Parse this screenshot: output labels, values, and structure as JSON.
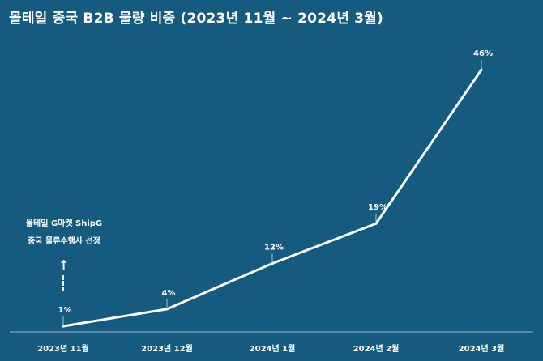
{
  "title": "몰테일 중국 B2B 물량 비중 (2023년 11월 ~ 2024년 3월)",
  "annotation": {
    "line1": "몰테일 G마켓 ShipG",
    "line2": "중국 물류수행사 선정",
    "arrow_icon": "arrow-up-dashed"
  },
  "colors": {
    "background": "#155b80",
    "line": "#ffffff",
    "text": "#ffffff"
  },
  "chart_data": {
    "type": "line",
    "categories": [
      "2023년 11월",
      "2023년 12월",
      "2024년 1월",
      "2024년 2월",
      "2024년 3월"
    ],
    "values": [
      1,
      4,
      12,
      19,
      46
    ],
    "data_labels": [
      "1%",
      "4%",
      "12%",
      "19%",
      "46%"
    ],
    "ylim": [
      0,
      50
    ],
    "grid": false,
    "legend": "none"
  }
}
